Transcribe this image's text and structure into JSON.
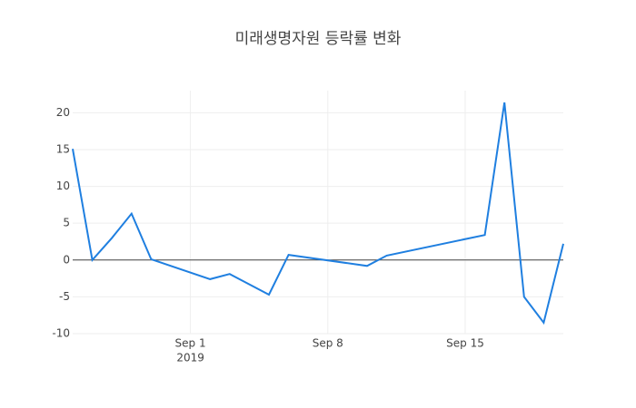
{
  "chart_data": {
    "type": "line",
    "title": "미래생명자원 등락률 변화",
    "x": [
      "2019-08-26",
      "2019-08-27",
      "2019-08-28",
      "2019-08-29",
      "2019-08-30",
      "2019-09-02",
      "2019-09-03",
      "2019-09-05",
      "2019-09-06",
      "2019-09-10",
      "2019-09-11",
      "2019-09-16",
      "2019-09-17",
      "2019-09-18",
      "2019-09-19",
      "2019-09-20"
    ],
    "series": [
      {
        "name": "등락률",
        "color": "#1f7fe0",
        "values": [
          15.1,
          0,
          3,
          6.3,
          0.1,
          -2.6,
          -1.9,
          -4.7,
          0.7,
          -0.8,
          0.6,
          3.4,
          21.4,
          -5,
          -8.5,
          2.2
        ]
      }
    ],
    "xlim": [
      "2019-08-26",
      "2019-09-20"
    ],
    "xticks": [
      {
        "value": "2019-09-01",
        "label": "Sep 1"
      },
      {
        "value": "2019-09-08",
        "label": "Sep 8"
      },
      {
        "value": "2019-09-15",
        "label": "Sep 15"
      }
    ],
    "xtick_year": "2019",
    "ylim": [
      -10,
      23
    ],
    "yticks": [
      -10,
      -5,
      0,
      5,
      10,
      15,
      20
    ],
    "grid": true,
    "zeroline": true
  }
}
